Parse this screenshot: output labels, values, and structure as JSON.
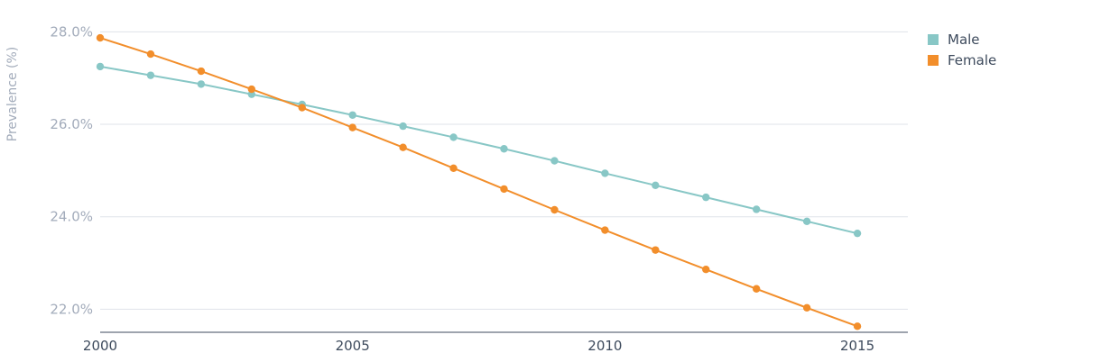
{
  "chart_data": {
    "type": "line",
    "ylabel": "Prevalence (%)",
    "xlim": [
      2000,
      2016
    ],
    "ylim": [
      21.5,
      28.3
    ],
    "y_ticks": [
      22.0,
      24.0,
      26.0,
      28.0
    ],
    "y_tick_labels": [
      "22.0%",
      "24.0%",
      "26.0%",
      "28.0%"
    ],
    "x_ticks": [
      2000,
      2005,
      2010,
      2015
    ],
    "x_tick_labels": [
      "2000",
      "2005",
      "2010",
      "2015"
    ],
    "grid": true,
    "legend_position": "top-right",
    "x": [
      2000,
      2001,
      2002,
      2003,
      2004,
      2005,
      2006,
      2007,
      2008,
      2009,
      2010,
      2011,
      2012,
      2013,
      2014,
      2015
    ],
    "series": [
      {
        "name": "Male",
        "color": "#88c7c6",
        "values": [
          27.25,
          27.06,
          26.87,
          26.65,
          26.43,
          26.2,
          25.96,
          25.72,
          25.47,
          25.21,
          24.94,
          24.68,
          24.42,
          24.16,
          23.9,
          23.64
        ]
      },
      {
        "name": "Female",
        "color": "#f28e2b",
        "values": [
          27.87,
          27.52,
          27.15,
          26.76,
          26.36,
          25.93,
          25.5,
          25.05,
          24.6,
          24.15,
          23.71,
          23.28,
          22.86,
          22.44,
          22.03,
          21.63
        ]
      }
    ]
  }
}
